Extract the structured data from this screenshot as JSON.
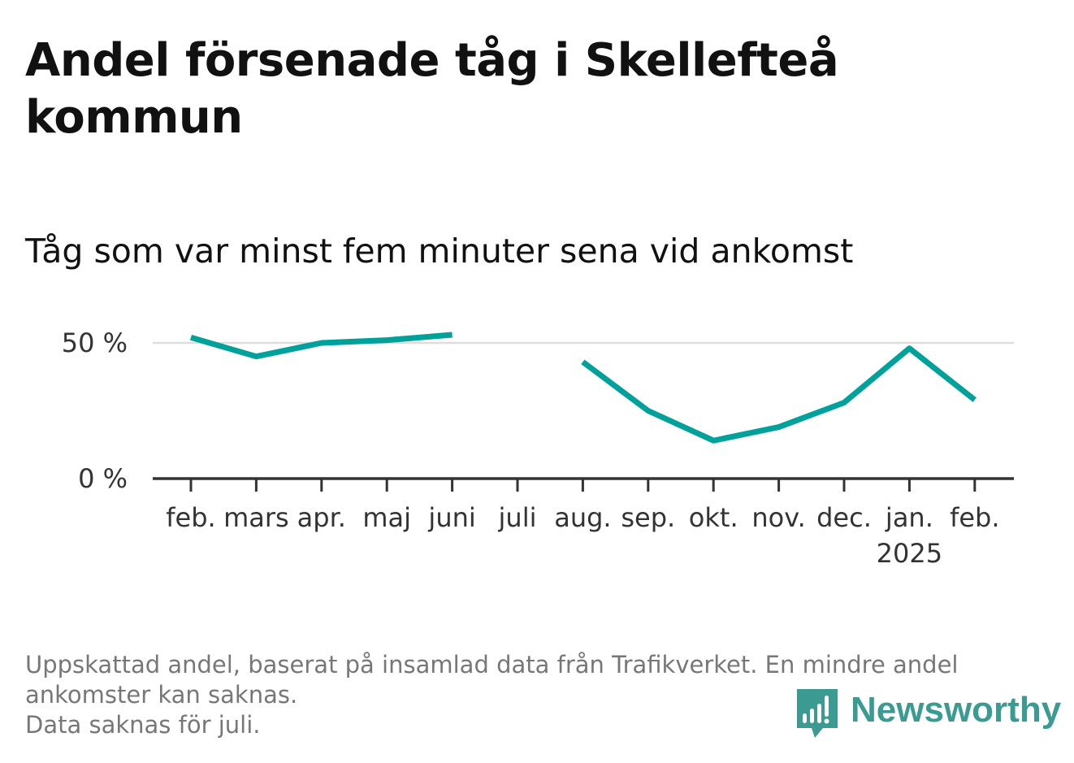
{
  "title": "Andel försenade tåg i Skellefteå kommun",
  "subtitle": "Tåg som var minst fem minuter sena vid ankomst",
  "footnote": {
    "line1": "Uppskattad andel, baserat på insamlad data från Trafikverket. En mindre andel",
    "line2": "ankomster kan saknas.",
    "line3": "Data saknas för juli."
  },
  "logo": {
    "text": "Newsworthy",
    "icon": "newsworthy-logo-icon"
  },
  "colors": {
    "line": "#00a19a",
    "grid": "#dddddd",
    "axis": "#333333",
    "logo": "#3b9b93"
  },
  "chart_data": {
    "type": "line",
    "title": "Andel försenade tåg i Skellefteå kommun",
    "subtitle": "Tåg som var minst fem minuter sena vid ankomst",
    "xlabel": "",
    "ylabel": "",
    "categories": [
      "feb.",
      "mars",
      "apr.",
      "maj",
      "juni",
      "juli",
      "aug.",
      "sep.",
      "okt.",
      "nov.",
      "dec.",
      "jan.",
      "feb."
    ],
    "category_sublabels": [
      "",
      "",
      "",
      "",
      "",
      "",
      "",
      "",
      "",
      "",
      "",
      "2025",
      ""
    ],
    "series": [
      {
        "values": [
          52,
          45,
          50,
          51,
          53,
          null,
          43,
          25,
          14,
          19,
          28,
          48,
          29
        ]
      }
    ],
    "y_ticks": [
      {
        "value": 0,
        "label": "0 %"
      },
      {
        "value": 50,
        "label": "50 %"
      }
    ],
    "ylim": [
      0,
      60
    ],
    "grid": true,
    "legend": "none"
  }
}
